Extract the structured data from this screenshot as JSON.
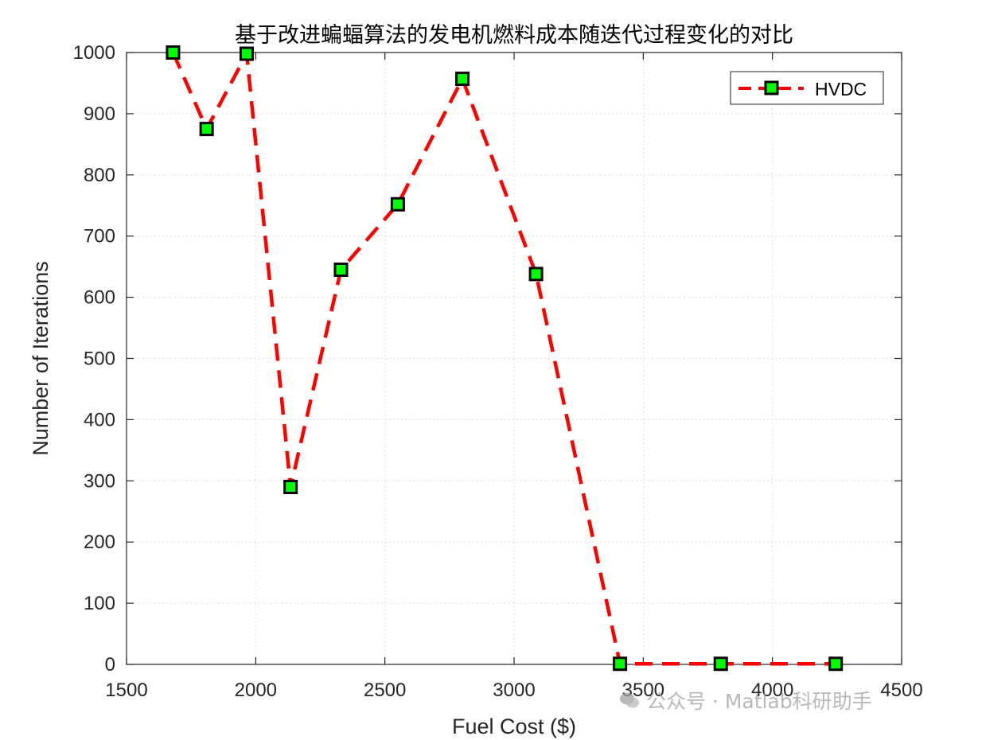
{
  "chart_data": {
    "type": "line",
    "title": "基于改进蝙蝠算法的发电机燃料成本随迭代过程变化的对比",
    "xlabel": "Fuel Cost ($)",
    "ylabel": "Number of Iterations",
    "xlim": [
      1500,
      4500
    ],
    "ylim": [
      0,
      1000
    ],
    "xticks": [
      1500,
      2000,
      2500,
      3000,
      3500,
      4000,
      4500
    ],
    "yticks": [
      0,
      100,
      200,
      300,
      400,
      500,
      600,
      700,
      800,
      900,
      1000
    ],
    "grid": true,
    "legend_position": "top-right",
    "series": [
      {
        "name": "HVDC",
        "line_color": "#ff0000",
        "line_style": "dashed",
        "marker": "square",
        "marker_fill": "#00ff00",
        "marker_edge": "#000000",
        "x": [
          1680,
          1810,
          1965,
          2135,
          2330,
          2550,
          2800,
          3085,
          3410,
          3800,
          4245
        ],
        "y": [
          1000,
          875,
          998,
          290,
          645,
          752,
          957,
          638,
          1,
          1,
          1
        ]
      }
    ]
  },
  "watermark": {
    "icon": "wechat-icon",
    "text": "公众号 · Matlab科研助手"
  }
}
